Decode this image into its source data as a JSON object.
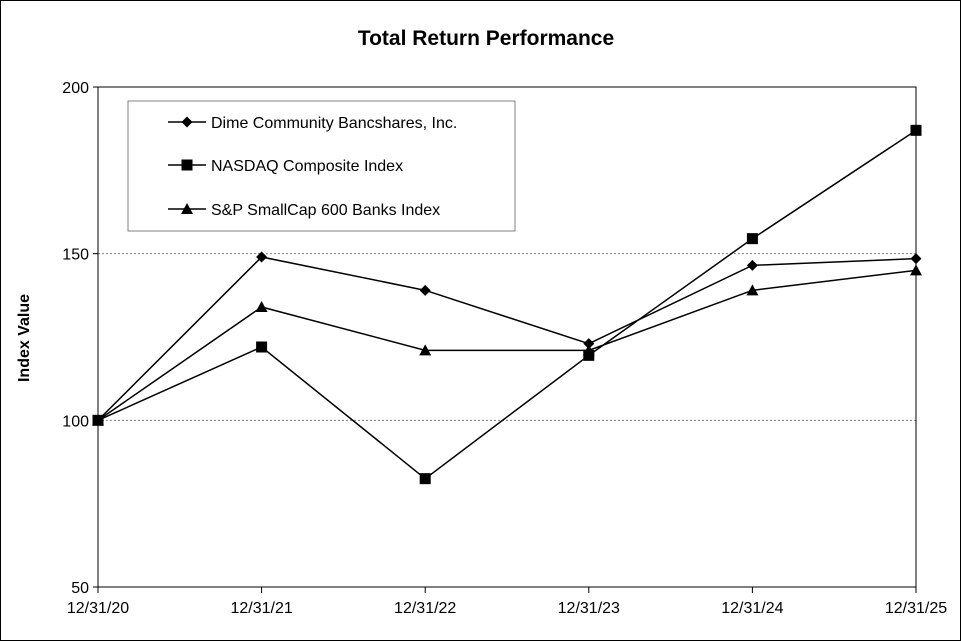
{
  "chart_data": {
    "type": "line",
    "title": "Total Return Performance",
    "ylabel": "Index Value",
    "xlabel": "",
    "categories": [
      "12/31/20",
      "12/31/21",
      "12/31/22",
      "12/31/23",
      "12/31/24",
      "12/31/25"
    ],
    "ylim": [
      50,
      200
    ],
    "yticks": [
      50,
      100,
      150,
      200
    ],
    "ytick_labels": [
      "50",
      "100",
      "150",
      "200"
    ],
    "grid": "horizontal dotted at 100 and 150",
    "legend_position": "top-left",
    "series": [
      {
        "name": "Dime Community Bancshares, Inc.",
        "marker": "diamond",
        "values": [
          100,
          149,
          139,
          123,
          146.5,
          148.5
        ]
      },
      {
        "name": "NASDAQ Composite Index",
        "marker": "square",
        "values": [
          100,
          122,
          82.5,
          119.5,
          154.5,
          187
        ]
      },
      {
        "name": "S&P SmallCap 600 Banks Index",
        "marker": "triangle",
        "values": [
          100,
          134,
          121,
          121,
          139,
          145
        ]
      }
    ]
  }
}
